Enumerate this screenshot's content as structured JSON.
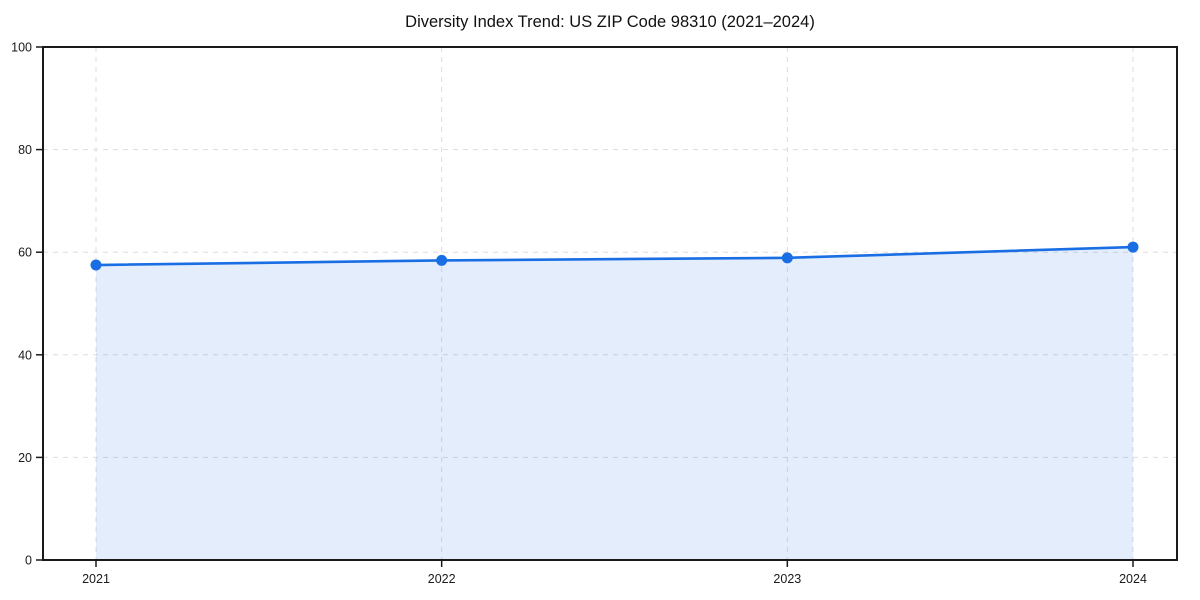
{
  "chart_data": {
    "type": "line",
    "title": "Diversity Index Trend: US ZIP Code 98310 (2021–2024)",
    "x": [
      "2021",
      "2022",
      "2023",
      "2024"
    ],
    "series": [
      {
        "name": "Diversity Index",
        "values": [
          57.5,
          58.4,
          58.9,
          61.0
        ]
      }
    ],
    "xlabel": "",
    "ylabel": "",
    "ylim": [
      0,
      100
    ],
    "yticks": [
      0,
      20,
      40,
      60,
      80,
      100
    ],
    "grid": "dashed both directions",
    "legend": "none",
    "area_fill": true,
    "marker": "circle",
    "colors": {
      "line": "#1a6ee4",
      "fill": "#1a6ee4",
      "fill_opacity": 0.12,
      "grid": "#dddddd",
      "spine": "#1a1a1a",
      "text": "#1a1a1a",
      "background": "#ffffff"
    }
  }
}
